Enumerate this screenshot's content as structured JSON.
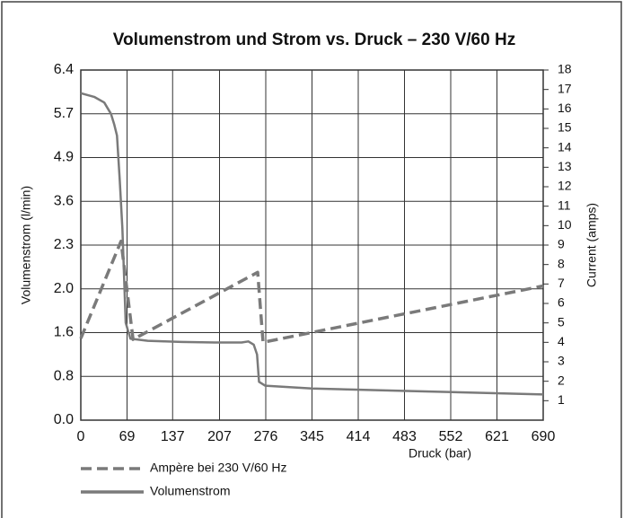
{
  "chart_data": {
    "type": "line",
    "title": "Volumenstrom und Strom vs. Druck – 230 V/60 Hz",
    "xlabel": "Druck (bar)",
    "ylabel": "Volumenstrom (l/min)",
    "y2label": "Current (amps)",
    "xlim": [
      0,
      690
    ],
    "xticks": [
      0,
      69,
      137,
      207,
      276,
      345,
      414,
      483,
      552,
      621,
      690
    ],
    "ylim": [
      0,
      6.4
    ],
    "yticks": [
      6.4,
      5.7,
      4.9,
      3.6,
      2.3,
      {
        "value": 2,
        "label": "2.0"
      },
      1.6,
      0.8,
      {
        "value": 0,
        "label": "0.0"
      }
    ],
    "y2lim": [
      0,
      18
    ],
    "y2ticks": [
      1,
      2,
      3,
      4,
      5,
      6,
      7,
      8,
      9,
      10,
      11,
      12,
      13,
      14,
      15,
      16,
      17,
      18
    ],
    "grid": true,
    "series": [
      {
        "name": "Ampère bei 230 V/60 Hz",
        "color": "#7a7a7a",
        "axis": "y2",
        "x": [
          0,
          60,
          78,
          264,
          272,
          690
        ],
        "values": [
          4.2,
          9.2,
          4.15,
          7.6,
          4.0,
          6.9
        ]
      },
      {
        "name": "Volumenstrom",
        "color": "#7a7a7a",
        "x": [
          0,
          20,
          35,
          45,
          50,
          54,
          58,
          62,
          67,
          74,
          100,
          150,
          200,
          240,
          250,
          258,
          263,
          266,
          275,
          345,
          500,
          690
        ],
        "values": [
          6.03,
          5.97,
          5.88,
          5.7,
          5.5,
          5.3,
          4.26,
          2.8,
          1.69,
          1.49,
          1.45,
          1.43,
          1.42,
          1.42,
          1.44,
          1.38,
          1.2,
          0.7,
          0.63,
          0.58,
          0.53,
          0.47
        ]
      }
    ]
  }
}
